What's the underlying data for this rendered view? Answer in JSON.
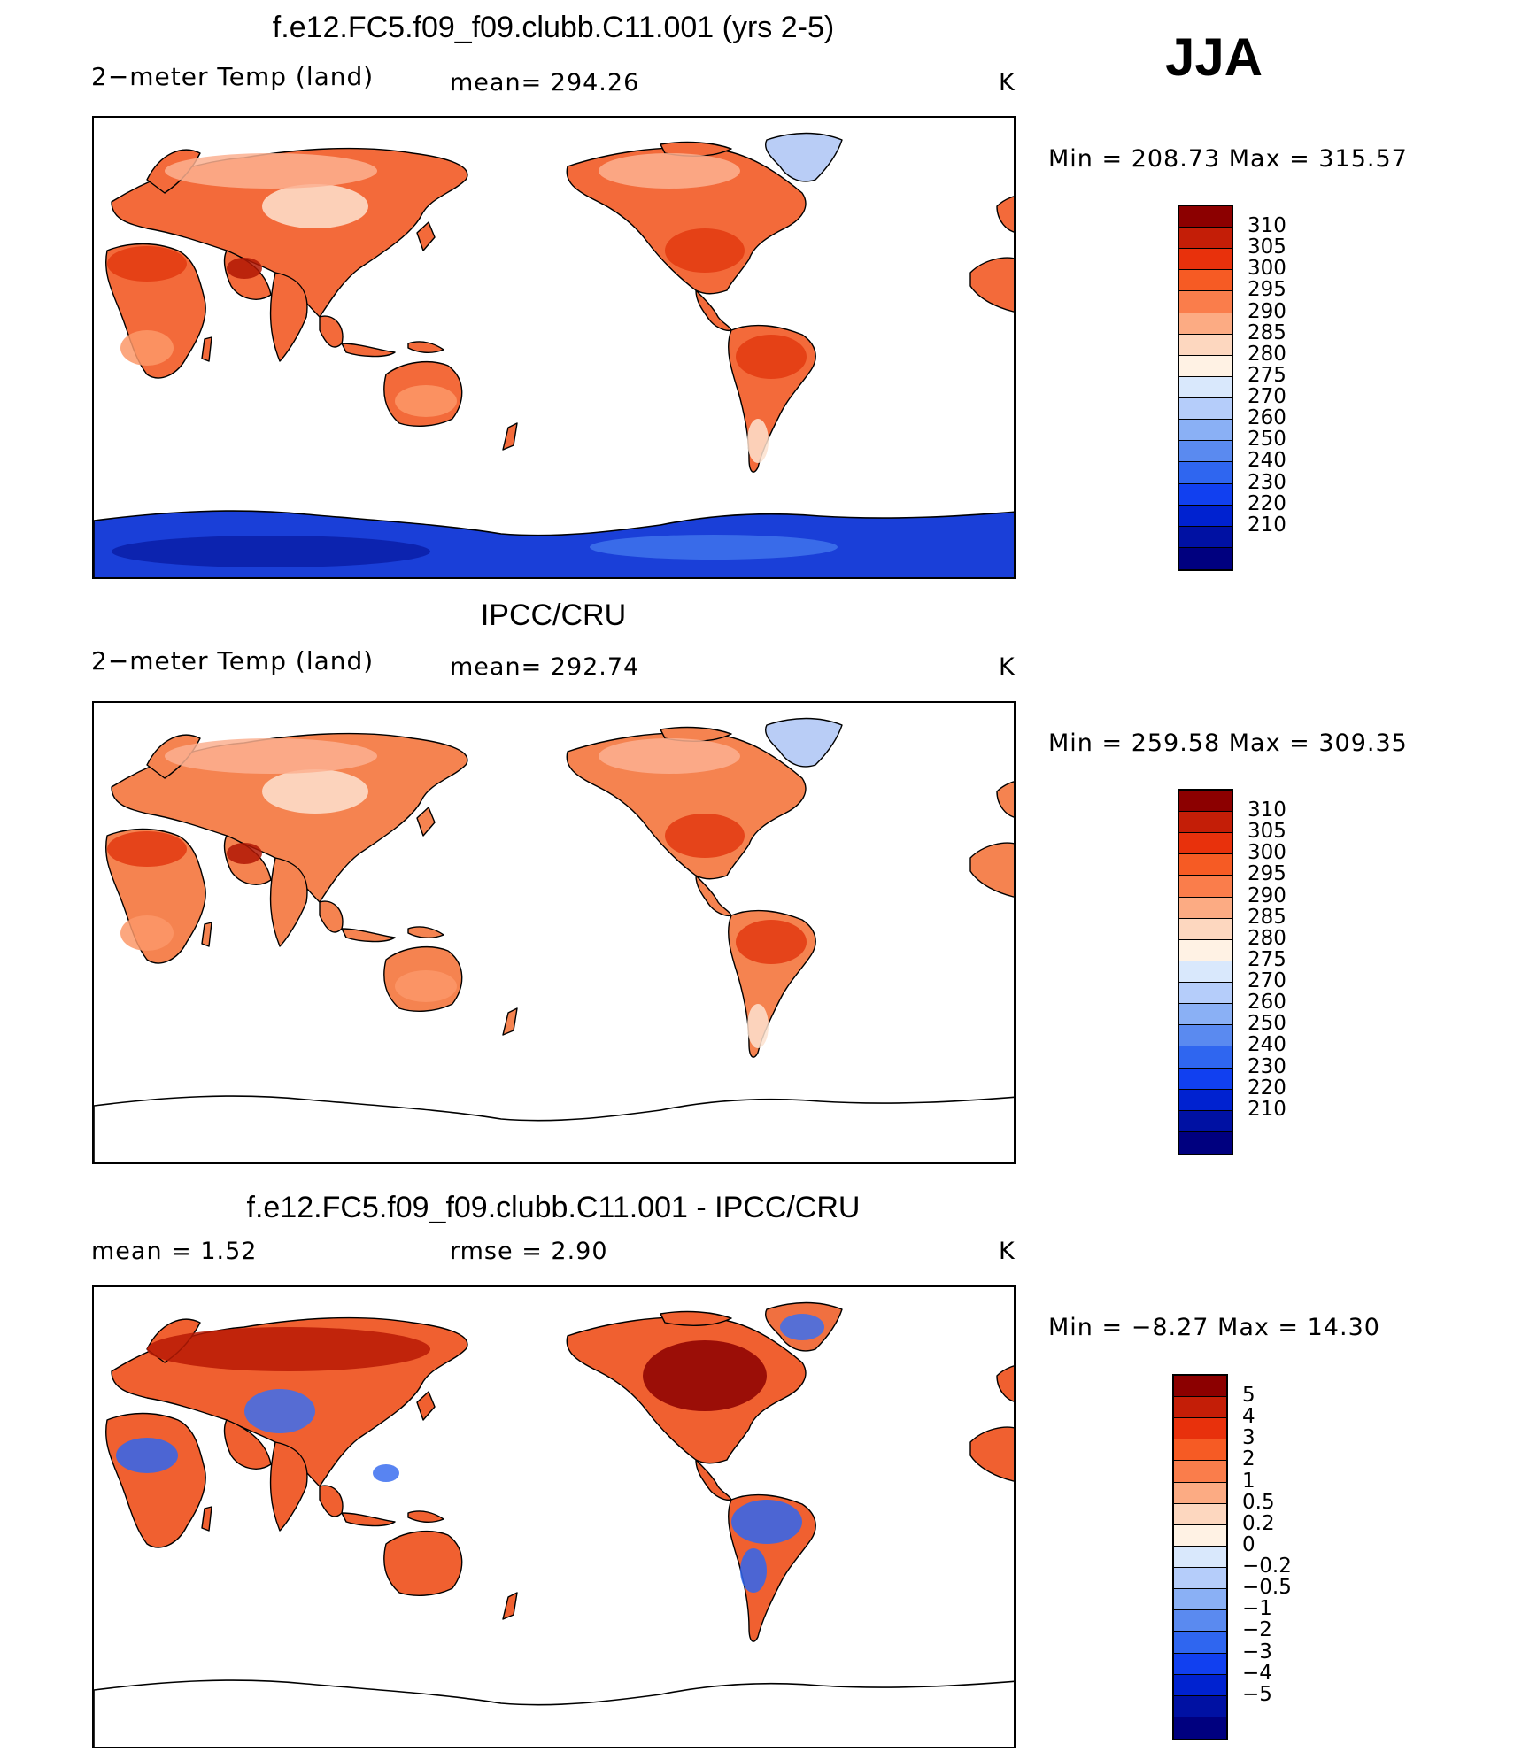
{
  "season": "JJA",
  "units": "K",
  "colors": {
    "abs_scale": [
      "#00007f",
      "#0011a3",
      "#0022d0",
      "#1140f0",
      "#2f66f0",
      "#5a8af0",
      "#8ab0f5",
      "#b5cdfa",
      "#d9e8fc",
      "#fff2e4",
      "#fdd7bf",
      "#fcab83",
      "#fa7d4b",
      "#f65b24",
      "#e8310c",
      "#c41e07",
      "#8c0000"
    ],
    "diff_scale": [
      "#00007f",
      "#0011a3",
      "#0022d0",
      "#1140f0",
      "#2f66f0",
      "#5a8af0",
      "#8ab0f5",
      "#b5cdfa",
      "#d9e8fc",
      "#fff2e4",
      "#fdd7bf",
      "#fcab83",
      "#fa7d4b",
      "#f65b24",
      "#e8310c",
      "#c41e07",
      "#8c0000"
    ],
    "land_warm": "#f36a3a",
    "land_cool": "#fcb090",
    "greenland": "#b9cdf6",
    "antarctica": "#1a3fd8"
  },
  "panels": [
    {
      "title": "f.e12.FC5.f09_f09.clubb.C11.001 (yrs 2-5)",
      "left_label": "2−meter Temp (land)",
      "center_label": "mean=  294.26",
      "right_label": "K",
      "minmax": "Min  =  208.73  Max  =  315.57",
      "colorbar_labels": [
        "310",
        "305",
        "300",
        "295",
        "290",
        "285",
        "280",
        "275",
        "270",
        "260",
        "250",
        "240",
        "230",
        "220",
        "210"
      ],
      "has_antarctica_fill": true
    },
    {
      "title": "IPCC/CRU",
      "left_label": "2−meter Temp (land)",
      "center_label": "mean=  292.74",
      "right_label": "K",
      "minmax": "Min  =  259.58  Max  =  309.35",
      "colorbar_labels": [
        "310",
        "305",
        "300",
        "295",
        "290",
        "285",
        "280",
        "275",
        "270",
        "260",
        "250",
        "240",
        "230",
        "220",
        "210"
      ],
      "has_antarctica_fill": false
    },
    {
      "title": "f.e12.FC5.f09_f09.clubb.C11.001 - IPCC/CRU",
      "left_label": "mean  =     1.52",
      "center_label": "rmse  =     2.90",
      "right_label": "K",
      "minmax": "Min  =    −8.27  Max  =     14.30",
      "colorbar_labels": [
        "5",
        "4",
        "3",
        "2",
        "1",
        "0.5",
        "0.2",
        "0",
        "−0.2",
        "−0.5",
        "−1",
        "−2",
        "−3",
        "−4",
        "−5"
      ],
      "has_antarctica_fill": false
    }
  ],
  "chart_data": [
    {
      "type": "heatmap",
      "title": "f.e12.FC5.f09_f09.clubb.C11.001 (yrs 2-5)",
      "variable": "2−meter Temp (land)",
      "units": "K",
      "mean": 294.26,
      "min": 208.73,
      "max": 315.57,
      "levels": [
        210,
        220,
        230,
        240,
        250,
        260,
        270,
        275,
        280,
        285,
        290,
        295,
        300,
        305,
        310
      ]
    },
    {
      "type": "heatmap",
      "title": "IPCC/CRU",
      "variable": "2−meter Temp (land)",
      "units": "K",
      "mean": 292.74,
      "min": 259.58,
      "max": 309.35,
      "levels": [
        210,
        220,
        230,
        240,
        250,
        260,
        270,
        275,
        280,
        285,
        290,
        295,
        300,
        305,
        310
      ]
    },
    {
      "type": "heatmap",
      "title": "f.e12.FC5.f09_f09.clubb.C11.001 - IPCC/CRU",
      "units": "K",
      "mean": 1.52,
      "rmse": 2.9,
      "min": -8.27,
      "max": 14.3,
      "levels": [
        -5,
        -4,
        -3,
        -2,
        -1,
        -0.5,
        -0.2,
        0,
        0.2,
        0.5,
        1,
        2,
        3,
        4,
        5
      ]
    }
  ]
}
